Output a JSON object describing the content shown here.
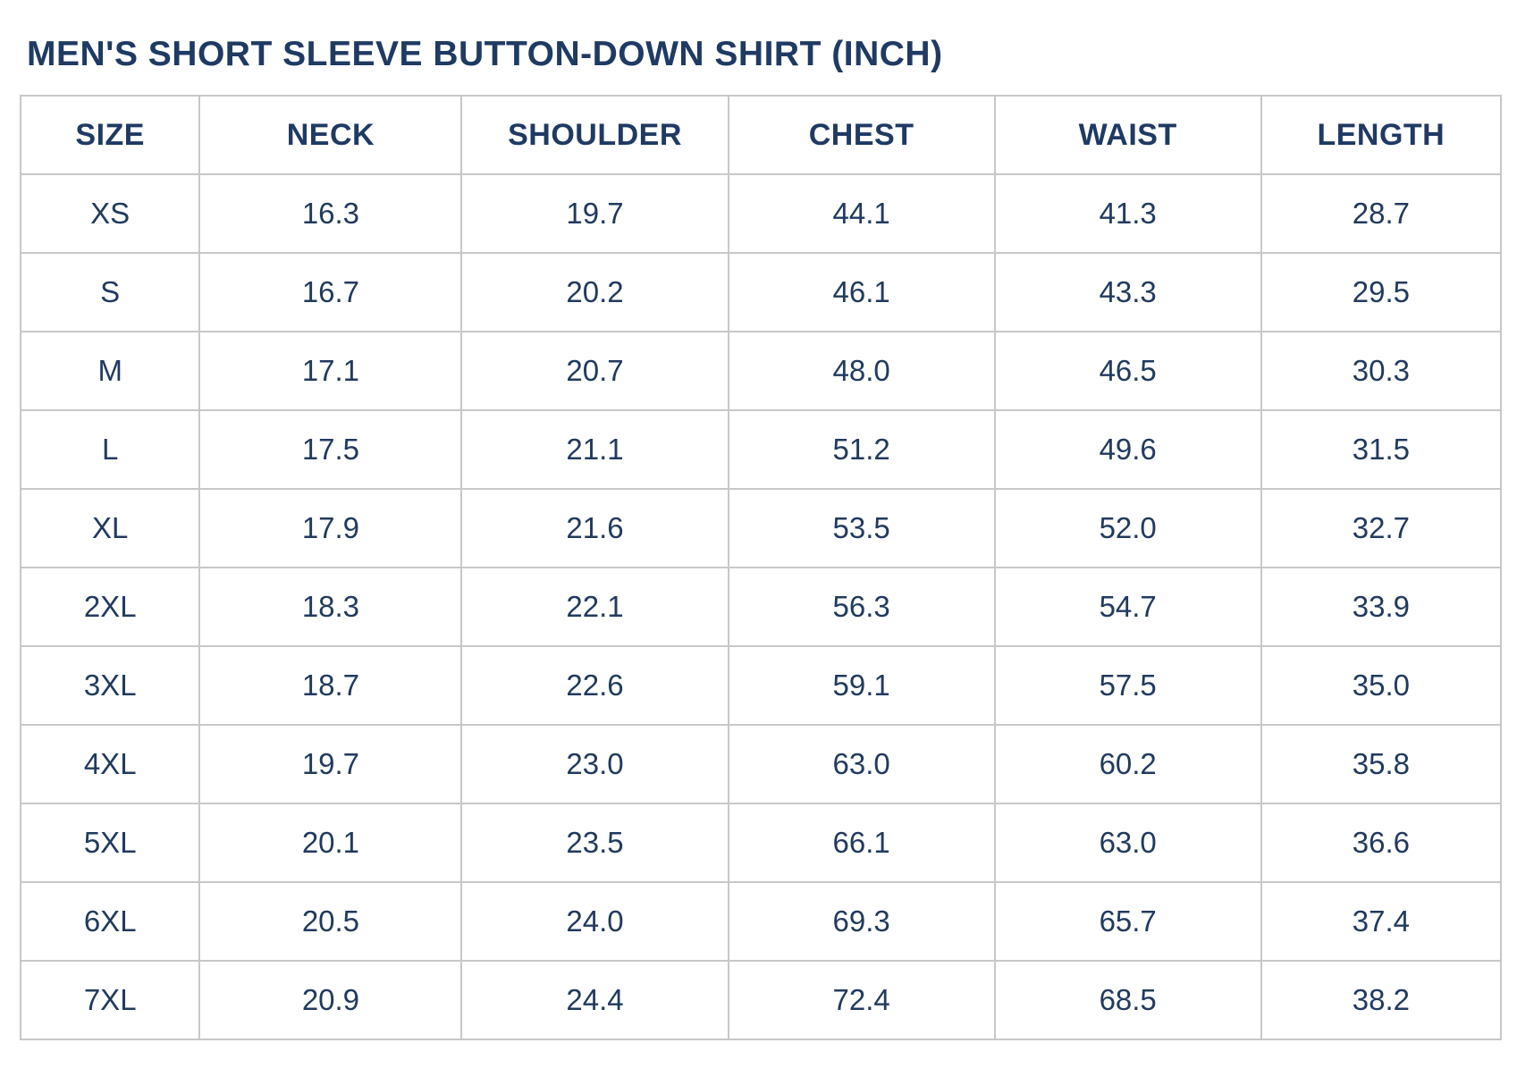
{
  "title": "MEN'S SHORT SLEEVE BUTTON-DOWN SHIRT (INCH)",
  "unit": "INCH",
  "colors": {
    "text_navy": "#1f3a63",
    "border_gray": "#c8c8c8",
    "background": "#ffffff"
  },
  "chart_data": {
    "type": "table",
    "title": "MEN'S SHORT SLEEVE BUTTON-DOWN SHIRT (INCH)",
    "columns": [
      "SIZE",
      "NECK",
      "SHOULDER",
      "CHEST",
      "WAIST",
      "LENGTH"
    ],
    "rows": [
      [
        "XS",
        "16.3",
        "19.7",
        "44.1",
        "41.3",
        "28.7"
      ],
      [
        "S",
        "16.7",
        "20.2",
        "46.1",
        "43.3",
        "29.5"
      ],
      [
        "M",
        "17.1",
        "20.7",
        "48.0",
        "46.5",
        "30.3"
      ],
      [
        "L",
        "17.5",
        "21.1",
        "51.2",
        "49.6",
        "31.5"
      ],
      [
        "XL",
        "17.9",
        "21.6",
        "53.5",
        "52.0",
        "32.7"
      ],
      [
        "2XL",
        "18.3",
        "22.1",
        "56.3",
        "54.7",
        "33.9"
      ],
      [
        "3XL",
        "18.7",
        "22.6",
        "59.1",
        "57.5",
        "35.0"
      ],
      [
        "4XL",
        "19.7",
        "23.0",
        "63.0",
        "60.2",
        "35.8"
      ],
      [
        "5XL",
        "20.1",
        "23.5",
        "66.1",
        "63.0",
        "36.6"
      ],
      [
        "6XL",
        "20.5",
        "24.0",
        "69.3",
        "65.7",
        "37.4"
      ],
      [
        "7XL",
        "20.9",
        "24.4",
        "72.4",
        "68.5",
        "38.2"
      ]
    ],
    "column_width_pct": [
      12.1,
      17.7,
      18.0,
      18.0,
      18.0,
      16.2
    ],
    "grid": true,
    "legend_position": "none"
  }
}
